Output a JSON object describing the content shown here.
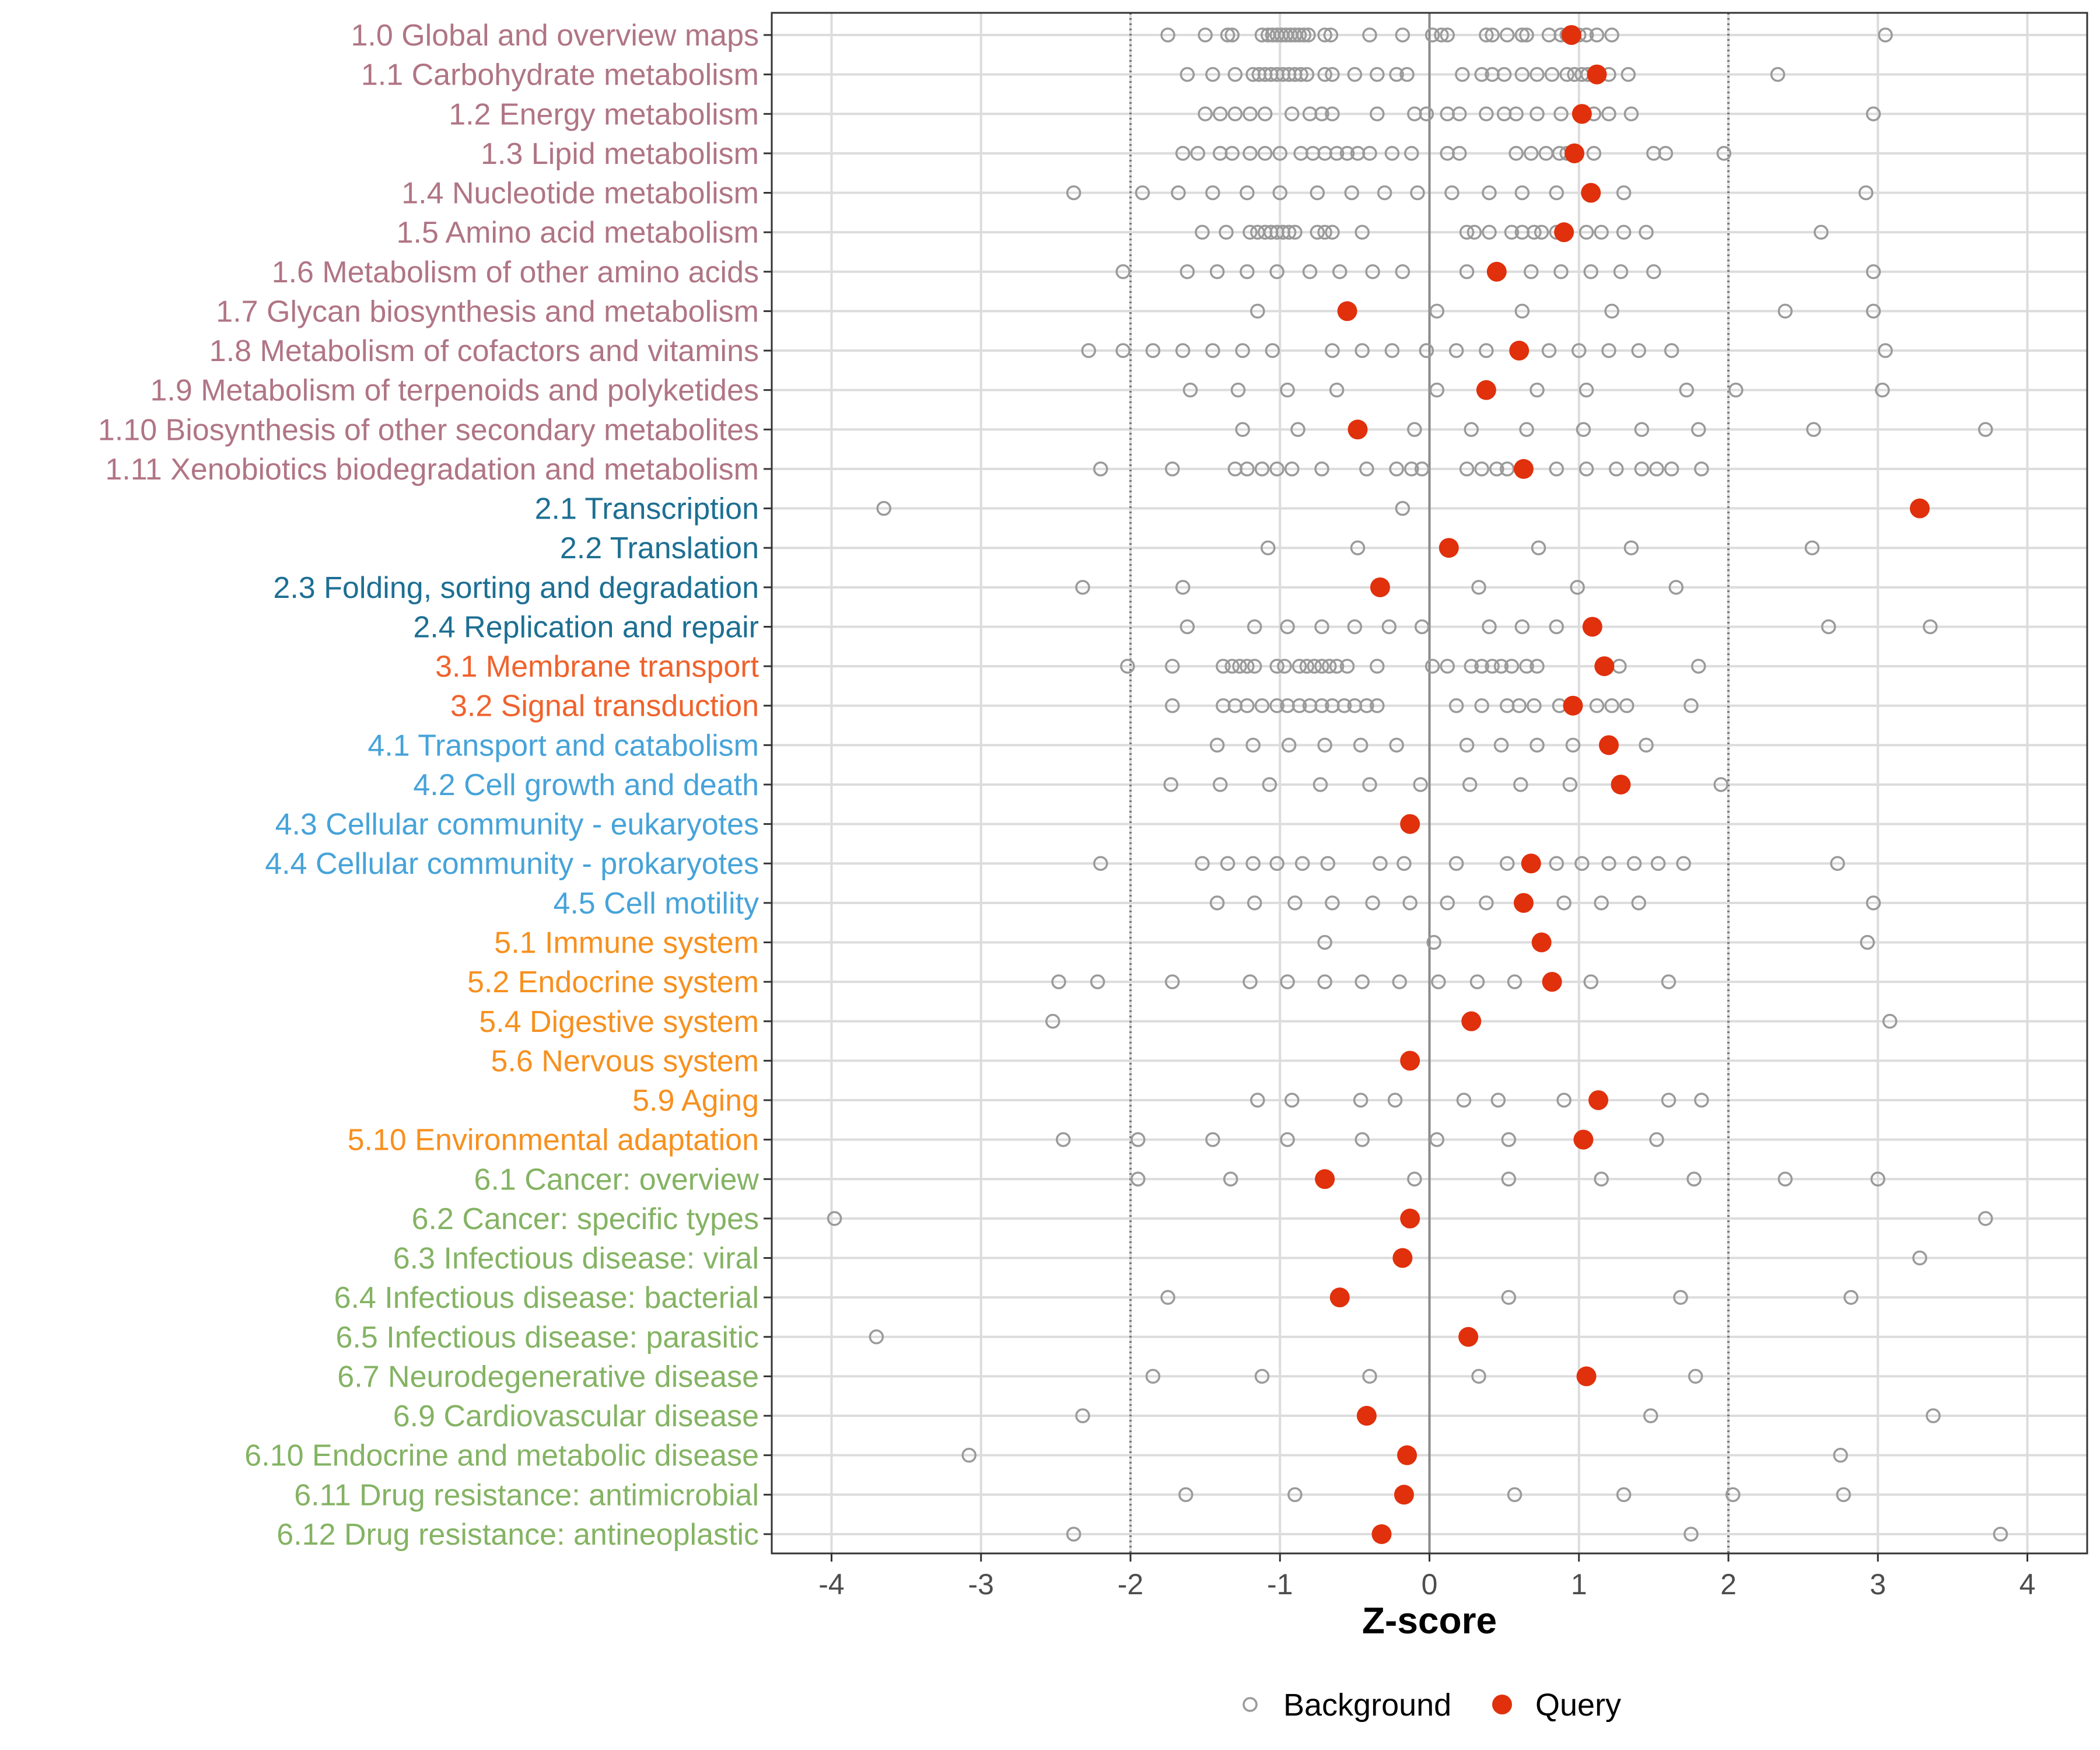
{
  "chart_data": {
    "type": "scatter",
    "title": "",
    "xlabel": "Z-score",
    "ylabel": "",
    "xlim": [
      -4.4,
      4.4
    ],
    "x_ticks": [
      -4,
      -3,
      -2,
      -1,
      0,
      1,
      2,
      3,
      4
    ],
    "x_tick_labels": [
      "-4",
      "-3",
      "-2",
      "-1",
      "0",
      "1",
      "2",
      "3",
      "4"
    ],
    "reference_lines": {
      "solid": 0,
      "dotted": [
        -2,
        2
      ]
    },
    "legend": {
      "position": "bottom",
      "entries": [
        "Background",
        "Query"
      ]
    },
    "colors": {
      "background_points": "#9a9a9a",
      "query_points": "#e0300c",
      "group_1": "#b07585",
      "group_2": "#1d6f93",
      "group_3": "#f0622c",
      "group_4": "#46a3d9",
      "group_5": "#f7901e",
      "group_6": "#84b363"
    },
    "categories": [
      {
        "label": "1.0 Global and overview maps",
        "group": 1,
        "query": 0.95,
        "background": [
          -1.75,
          -1.5,
          -1.35,
          -1.32,
          -1.12,
          -1.08,
          -1.05,
          -1.02,
          -0.99,
          -0.96,
          -0.93,
          -0.9,
          -0.87,
          -0.84,
          -0.81,
          -0.7,
          -0.66,
          -0.4,
          -0.18,
          0.02,
          0.08,
          0.12,
          0.38,
          0.42,
          0.52,
          0.62,
          0.65,
          0.8,
          0.88,
          0.92,
          1.0,
          1.05,
          1.12,
          1.22,
          3.05
        ]
      },
      {
        "label": "1.1 Carbohydrate metabolism",
        "group": 1,
        "query": 1.12,
        "background": [
          -1.62,
          -1.45,
          -1.3,
          -1.18,
          -1.14,
          -1.1,
          -1.06,
          -1.02,
          -0.98,
          -0.94,
          -0.9,
          -0.86,
          -0.82,
          -0.7,
          -0.65,
          -0.5,
          -0.35,
          -0.22,
          -0.15,
          0.22,
          0.35,
          0.42,
          0.5,
          0.62,
          0.72,
          0.82,
          0.92,
          0.97,
          1.02,
          1.06,
          1.2,
          1.33,
          2.33
        ]
      },
      {
        "label": "1.2 Energy metabolism",
        "group": 1,
        "query": 1.02,
        "background": [
          -1.5,
          -1.4,
          -1.3,
          -1.2,
          -1.1,
          -0.92,
          -0.8,
          -0.72,
          -0.65,
          -0.35,
          -0.1,
          -0.02,
          0.12,
          0.2,
          0.38,
          0.5,
          0.58,
          0.72,
          0.88,
          1.1,
          1.2,
          1.35,
          2.97
        ]
      },
      {
        "label": "1.3 Lipid metabolism",
        "group": 1,
        "query": 0.97,
        "background": [
          -1.65,
          -1.55,
          -1.4,
          -1.32,
          -1.2,
          -1.1,
          -1.0,
          -0.86,
          -0.78,
          -0.7,
          -0.62,
          -0.55,
          -0.48,
          -0.4,
          -0.25,
          -0.12,
          0.12,
          0.2,
          0.58,
          0.68,
          0.78,
          0.87,
          0.92,
          1.1,
          1.5,
          1.58,
          1.97
        ]
      },
      {
        "label": "1.4 Nucleotide metabolism",
        "group": 1,
        "query": 1.08,
        "background": [
          -2.38,
          -1.92,
          -1.68,
          -1.45,
          -1.22,
          -1.0,
          -0.75,
          -0.52,
          -0.3,
          -0.08,
          0.15,
          0.4,
          0.62,
          0.85,
          1.3,
          2.92
        ]
      },
      {
        "label": "1.5 Amino acid metabolism",
        "group": 1,
        "query": 0.9,
        "background": [
          -1.52,
          -1.36,
          -1.2,
          -1.15,
          -1.1,
          -1.06,
          -1.02,
          -0.98,
          -0.94,
          -0.9,
          -0.75,
          -0.7,
          -0.65,
          -0.45,
          0.25,
          0.3,
          0.4,
          0.55,
          0.62,
          0.7,
          0.75,
          0.85,
          1.05,
          1.15,
          1.3,
          1.45,
          2.62
        ]
      },
      {
        "label": "1.6 Metabolism of other amino acids",
        "group": 1,
        "query": 0.45,
        "background": [
          -2.05,
          -1.62,
          -1.42,
          -1.22,
          -1.02,
          -0.8,
          -0.6,
          -0.38,
          -0.18,
          0.25,
          0.68,
          0.88,
          1.08,
          1.28,
          1.5,
          2.97
        ]
      },
      {
        "label": "1.7 Glycan biosynthesis and metabolism",
        "group": 1,
        "query": -0.55,
        "background": [
          -1.15,
          0.05,
          0.62,
          1.22,
          2.38,
          2.97
        ]
      },
      {
        "label": "1.8 Metabolism of cofactors and vitamins",
        "group": 1,
        "query": 0.6,
        "background": [
          -2.28,
          -2.05,
          -1.85,
          -1.65,
          -1.45,
          -1.25,
          -1.05,
          -0.65,
          -0.45,
          -0.25,
          -0.02,
          0.18,
          0.38,
          0.8,
          1.0,
          1.2,
          1.4,
          1.62,
          3.05
        ]
      },
      {
        "label": "1.9 Metabolism of terpenoids and polyketides",
        "group": 1,
        "query": 0.38,
        "background": [
          -1.6,
          -1.28,
          -0.95,
          -0.62,
          0.05,
          0.72,
          1.05,
          1.72,
          2.05,
          3.03
        ]
      },
      {
        "label": "1.10 Biosynthesis of other secondary metabolites",
        "group": 1,
        "query": -0.48,
        "background": [
          -1.25,
          -0.88,
          -0.1,
          0.28,
          0.65,
          1.03,
          1.42,
          1.8,
          2.57,
          3.72
        ]
      },
      {
        "label": "1.11 Xenobiotics biodegradation and metabolism",
        "group": 1,
        "query": 0.63,
        "background": [
          -2.2,
          -1.72,
          -1.3,
          -1.22,
          -1.12,
          -1.02,
          -0.92,
          -0.72,
          -0.42,
          -0.22,
          -0.12,
          -0.05,
          0.25,
          0.35,
          0.45,
          0.52,
          0.85,
          1.05,
          1.25,
          1.42,
          1.52,
          1.62,
          1.82
        ]
      },
      {
        "label": "2.1 Transcription",
        "group": 2,
        "query": 3.28,
        "background": [
          -3.65,
          -0.18
        ]
      },
      {
        "label": "2.2 Translation",
        "group": 2,
        "query": 0.13,
        "background": [
          -1.08,
          -0.48,
          0.73,
          1.35,
          2.56
        ]
      },
      {
        "label": "2.3 Folding, sorting and degradation",
        "group": 2,
        "query": -0.33,
        "background": [
          -2.32,
          -1.65,
          0.33,
          0.99,
          1.65
        ]
      },
      {
        "label": "2.4 Replication and repair",
        "group": 2,
        "query": 1.09,
        "background": [
          -1.62,
          -1.17,
          -0.95,
          -0.72,
          -0.5,
          -0.27,
          -0.05,
          0.4,
          0.62,
          0.85,
          2.67,
          3.35
        ]
      },
      {
        "label": "3.1 Membrane transport",
        "group": 3,
        "query": 1.17,
        "background": [
          -2.02,
          -1.72,
          -1.38,
          -1.32,
          -1.27,
          -1.22,
          -1.17,
          -1.02,
          -0.97,
          -0.87,
          -0.82,
          -0.77,
          -0.72,
          -0.67,
          -0.62,
          -0.55,
          -0.35,
          0.02,
          0.12,
          0.28,
          0.35,
          0.42,
          0.48,
          0.55,
          0.65,
          0.72,
          1.27,
          1.8
        ]
      },
      {
        "label": "3.2 Signal transduction",
        "group": 3,
        "query": 0.96,
        "background": [
          -1.72,
          -1.38,
          -1.3,
          -1.22,
          -1.12,
          -1.02,
          -0.95,
          -0.87,
          -0.8,
          -0.72,
          -0.65,
          -0.57,
          -0.5,
          -0.42,
          -0.35,
          0.18,
          0.35,
          0.52,
          0.6,
          0.7,
          0.87,
          1.12,
          1.22,
          1.32,
          1.75
        ]
      },
      {
        "label": "4.1 Transport and catabolism",
        "group": 4,
        "query": 1.2,
        "background": [
          -1.42,
          -1.18,
          -0.94,
          -0.7,
          -0.46,
          -0.22,
          0.25,
          0.48,
          0.72,
          0.96,
          1.45
        ]
      },
      {
        "label": "4.2 Cell growth and death",
        "group": 4,
        "query": 1.28,
        "background": [
          -1.73,
          -1.4,
          -1.07,
          -0.73,
          -0.4,
          -0.06,
          0.27,
          0.61,
          0.94,
          1.95
        ]
      },
      {
        "label": "4.3 Cellular community - eukaryotes",
        "group": 4,
        "query": -0.13,
        "background": []
      },
      {
        "label": "4.4 Cellular community - prokaryotes",
        "group": 4,
        "query": 0.68,
        "background": [
          -2.2,
          -1.52,
          -1.35,
          -1.18,
          -1.02,
          -0.85,
          -0.68,
          -0.33,
          -0.17,
          0.18,
          0.52,
          0.85,
          1.02,
          1.2,
          1.37,
          1.53,
          1.7,
          2.73
        ]
      },
      {
        "label": "4.5 Cell motility",
        "group": 4,
        "query": 0.63,
        "background": [
          -1.42,
          -1.17,
          -0.9,
          -0.65,
          -0.38,
          -0.13,
          0.12,
          0.38,
          0.9,
          1.15,
          1.4,
          2.97
        ]
      },
      {
        "label": "5.1 Immune system",
        "group": 5,
        "query": 0.75,
        "background": [
          -0.7,
          0.03,
          2.93
        ]
      },
      {
        "label": "5.2 Endocrine system",
        "group": 5,
        "query": 0.82,
        "background": [
          -2.48,
          -2.22,
          -1.72,
          -1.2,
          -0.95,
          -0.7,
          -0.45,
          -0.2,
          0.06,
          0.32,
          0.57,
          1.08,
          1.6
        ]
      },
      {
        "label": "5.4 Digestive system",
        "group": 5,
        "query": 0.28,
        "background": [
          -2.52,
          3.08
        ]
      },
      {
        "label": "5.6 Nervous system",
        "group": 5,
        "query": -0.13,
        "background": []
      },
      {
        "label": "5.9 Aging",
        "group": 5,
        "query": 1.13,
        "background": [
          -1.15,
          -0.92,
          -0.46,
          -0.23,
          0.23,
          0.46,
          0.9,
          1.6,
          1.82
        ]
      },
      {
        "label": "5.10 Environmental adaptation",
        "group": 5,
        "query": 1.03,
        "background": [
          -2.45,
          -1.95,
          -1.45,
          -0.95,
          -0.45,
          0.05,
          0.53,
          1.52
        ]
      },
      {
        "label": "6.1 Cancer: overview",
        "group": 6,
        "query": -0.7,
        "background": [
          -1.95,
          -1.33,
          -0.1,
          0.53,
          1.15,
          1.77,
          2.38,
          3.0
        ]
      },
      {
        "label": "6.2 Cancer: specific types",
        "group": 6,
        "query": -0.13,
        "background": [
          -3.98,
          3.72
        ]
      },
      {
        "label": "6.3 Infectious disease: viral",
        "group": 6,
        "query": -0.18,
        "background": [
          3.28
        ]
      },
      {
        "label": "6.4 Infectious disease: bacterial",
        "group": 6,
        "query": -0.6,
        "background": [
          -1.75,
          0.53,
          1.68,
          2.82
        ]
      },
      {
        "label": "6.5 Infectious disease: parasitic",
        "group": 6,
        "query": 0.26,
        "background": [
          -3.7
        ]
      },
      {
        "label": "6.7 Neurodegenerative disease",
        "group": 6,
        "query": 1.05,
        "background": [
          -1.85,
          -1.12,
          -0.4,
          0.33,
          1.78
        ]
      },
      {
        "label": "6.9 Cardiovascular disease",
        "group": 6,
        "query": -0.42,
        "background": [
          -2.32,
          1.48,
          3.37
        ]
      },
      {
        "label": "6.10 Endocrine and metabolic disease",
        "group": 6,
        "query": -0.15,
        "background": [
          -3.08,
          2.75
        ]
      },
      {
        "label": "6.11 Drug resistance: antimicrobial",
        "group": 6,
        "query": -0.17,
        "background": [
          -1.63,
          -0.9,
          0.57,
          1.3,
          2.03,
          2.77
        ]
      },
      {
        "label": "6.12 Drug resistance: antineoplastic",
        "group": 6,
        "query": -0.32,
        "background": [
          -2.38,
          1.75,
          3.82
        ]
      }
    ]
  }
}
